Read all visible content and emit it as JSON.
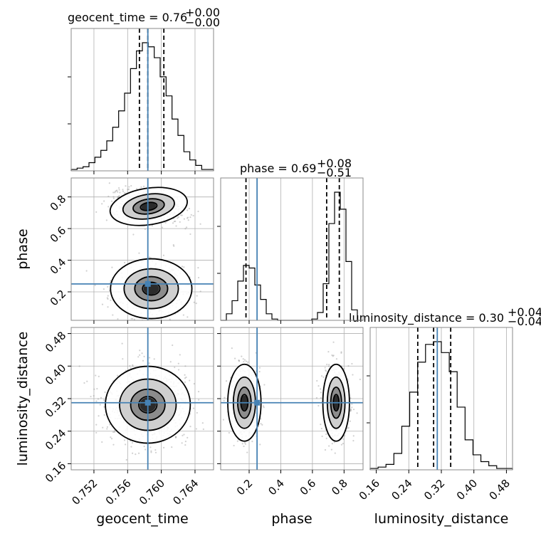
{
  "chart_data": {
    "type": "corner",
    "parameters": [
      "geocent_time",
      "phase",
      "luminosity_distance"
    ],
    "truths": {
      "geocent_time": 0.7584,
      "phase": 0.25,
      "luminosity_distance": 0.31
    },
    "titles": [
      {
        "param": "geocent_time",
        "prefix": "geocent_time = ",
        "value": "0.76",
        "upper": "+0.00",
        "lower": "−0.00"
      },
      {
        "param": "phase",
        "prefix": "phase = ",
        "value": "0.69",
        "upper": "+0.08",
        "lower": "−0.51"
      },
      {
        "param": "luminosity_distance",
        "prefix": "luminosity_distance = ",
        "value": "0.30",
        "upper": "+0.04",
        "lower": "−0.04"
      }
    ],
    "axis_labels": {
      "geocent_time": "geocent_time",
      "phase": "phase",
      "luminosity_distance": "luminosity_distance"
    },
    "ticks": {
      "geocent_time": [
        "0.752",
        "0.756",
        "0.760",
        "0.764"
      ],
      "phase": [
        "0.2",
        "0.4",
        "0.6",
        "0.8"
      ],
      "luminosity_distance": [
        "0.16",
        "0.24",
        "0.32",
        "0.40",
        "0.48"
      ]
    },
    "ranges": {
      "geocent_time": [
        0.7493,
        0.7662
      ],
      "phase": [
        0.02,
        0.92
      ],
      "luminosity_distance": [
        0.145,
        0.495
      ]
    },
    "quantiles": {
      "geocent_time": [
        0.7574,
        0.7584,
        0.7603
      ],
      "phase": [
        0.18,
        0.69,
        0.77
      ],
      "luminosity_distance": [
        0.262,
        0.301,
        0.343
      ]
    },
    "hist1d": {
      "geocent_time": {
        "edges_range": [
          0.7493,
          0.7662
        ],
        "counts": [
          1,
          2,
          3,
          6,
          10,
          15,
          22,
          32,
          44,
          57,
          75,
          88,
          94,
          91,
          83,
          69,
          55,
          38,
          26,
          14,
          8,
          4,
          1,
          1
        ]
      },
      "phase": {
        "edges_range": [
          0.02,
          0.92
        ],
        "counts": [
          0,
          5,
          15,
          30,
          42,
          40,
          27,
          16,
          5,
          1,
          0,
          0,
          0,
          0,
          0,
          0,
          1,
          6,
          28,
          74,
          98,
          85,
          45,
          8,
          0
        ]
      },
      "luminosity_distance": {
        "edges_range": [
          0.145,
          0.495
        ],
        "counts": [
          1,
          2,
          4,
          12,
          32,
          57,
          79,
          92,
          94,
          86,
          72,
          46,
          22,
          11,
          6,
          3,
          1,
          1
        ]
      }
    },
    "grid": true
  }
}
